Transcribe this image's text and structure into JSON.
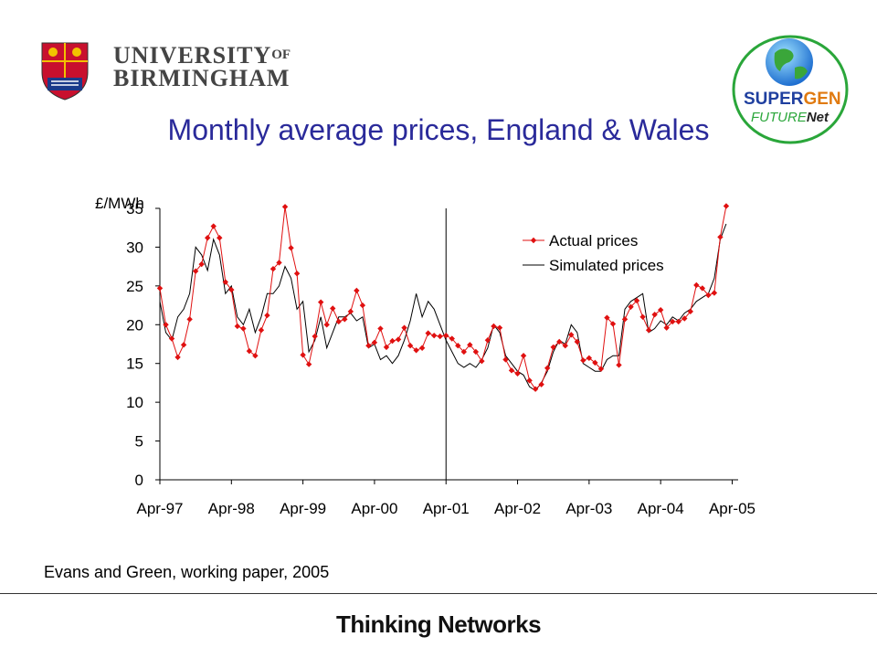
{
  "header": {
    "university_line1": "UNIVERSITY",
    "university_of": "OF",
    "university_line2": "BIRMINGHAM",
    "title": "Monthly average prices, England & Wales",
    "supergen_word1": "SUPER",
    "supergen_word2": "GEN",
    "futurenet_word1": "FUTURE",
    "futurenet_word2": "Net"
  },
  "colors": {
    "title": "#2a2a9a",
    "actual_series": "#e01010",
    "simulated_series": "#000000"
  },
  "chart_data": {
    "type": "line",
    "ylabel": "£/MWh",
    "ylim": [
      0,
      35
    ],
    "yticks": [
      0,
      5,
      10,
      15,
      20,
      25,
      30,
      35
    ],
    "xlim": [
      "Apr-97",
      "May-05"
    ],
    "xticks": [
      "Apr-97",
      "Apr-98",
      "Apr-99",
      "Apr-00",
      "Apr-01",
      "Apr-02",
      "Apr-03",
      "Apr-04",
      "Apr-05"
    ],
    "vertical_line_at": "Apr-01",
    "legend_position": "top-right",
    "start_month": "Apr-97",
    "series": [
      {
        "name": "Actual prices",
        "marker": "diamond",
        "values": [
          24.7,
          20.0,
          18.2,
          15.8,
          17.4,
          20.7,
          26.9,
          27.8,
          31.2,
          32.7,
          31.2,
          25.5,
          24.5,
          19.8,
          19.5,
          16.6,
          16.0,
          19.3,
          21.2,
          27.2,
          28.0,
          35.2,
          29.9,
          26.6,
          16.1,
          14.9,
          18.5,
          22.9,
          20.0,
          22.1,
          20.4,
          20.7,
          21.7,
          24.4,
          22.5,
          17.3,
          17.7,
          19.5,
          17.1,
          17.9,
          18.1,
          19.6,
          17.3,
          16.7,
          17.0,
          18.9,
          18.6,
          18.5,
          18.6,
          18.2,
          17.3,
          16.5,
          17.4,
          16.5,
          15.3,
          18.0,
          19.8,
          19.6,
          15.5,
          14.1,
          13.7,
          16.0,
          12.8,
          11.7,
          12.3,
          14.4,
          17.1,
          17.8,
          17.3,
          18.7,
          17.8,
          15.4,
          15.7,
          15.1,
          14.3,
          20.9,
          20.1,
          14.8,
          20.7,
          22.3,
          23.1,
          21.0,
          19.3,
          21.3,
          21.9,
          19.6,
          20.4,
          20.4,
          20.8,
          21.7,
          25.1,
          24.7,
          23.8,
          24.1,
          31.3,
          35.3
        ],
        "color": "#e01010"
      },
      {
        "name": "Simulated prices",
        "marker": "none",
        "values": [
          23.0,
          19.0,
          18.0,
          21.0,
          22.0,
          24.0,
          30.0,
          29.0,
          27.0,
          31.0,
          29.0,
          24.0,
          25.0,
          21.0,
          20.0,
          22.0,
          19.0,
          21.0,
          24.0,
          24.0,
          25.0,
          27.5,
          26.0,
          22.0,
          23.0,
          16.5,
          18.0,
          21.0,
          17.0,
          19.0,
          21.0,
          21.0,
          21.5,
          20.5,
          21.0,
          17.0,
          17.5,
          15.5,
          16.0,
          15.0,
          16.0,
          18.0,
          20.5,
          24.0,
          21.0,
          23.0,
          22.0,
          20.0,
          18.0,
          16.5,
          15.0,
          14.5,
          15.0,
          14.5,
          15.5,
          17.0,
          20.0,
          19.0,
          16.0,
          15.0,
          14.0,
          13.5,
          12.0,
          11.5,
          12.5,
          14.0,
          16.5,
          18.0,
          17.5,
          20.0,
          19.0,
          15.0,
          14.5,
          14.0,
          14.0,
          15.5,
          16.0,
          16.0,
          22.0,
          23.0,
          23.5,
          24.0,
          19.0,
          19.5,
          20.5,
          20.0,
          21.0,
          20.5,
          21.5,
          22.0,
          23.0,
          23.5,
          24.0,
          26.0,
          31.0,
          33.0
        ],
        "color": "#000000"
      }
    ]
  },
  "citation": "Evans and Green, working paper, 2005",
  "footer": {
    "tagline": "Thinking Networks"
  }
}
